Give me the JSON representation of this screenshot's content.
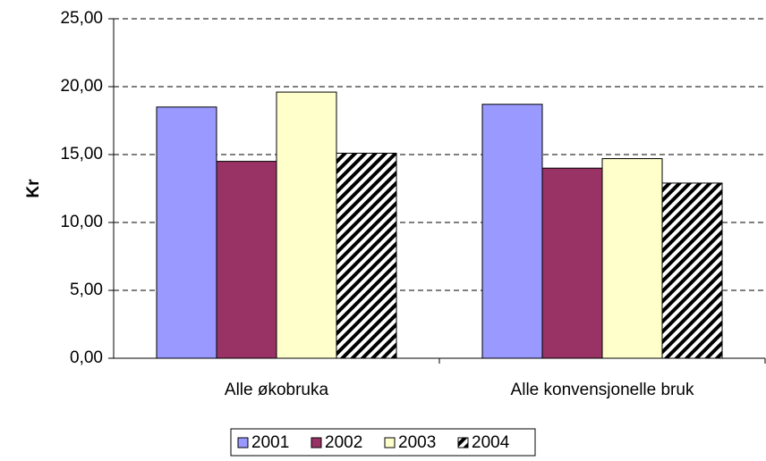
{
  "chart_data": {
    "type": "bar",
    "y_label": "Kr",
    "categories": [
      "Alle økobruka",
      "Alle konvensjonelle bruk"
    ],
    "series": [
      {
        "name": "2001",
        "color": "#9999ff",
        "values": [
          18.5,
          18.7
        ]
      },
      {
        "name": "2002",
        "color": "#993366",
        "values": [
          14.5,
          14.0
        ]
      },
      {
        "name": "2003",
        "color": "#ffffcc",
        "values": [
          19.6,
          14.7
        ]
      },
      {
        "name": "2004",
        "color": "#000000",
        "hatch": true,
        "values": [
          15.1,
          12.9
        ]
      }
    ],
    "ylim": [
      0,
      25
    ],
    "yticks": [
      {
        "value": 0,
        "label": "0,00"
      },
      {
        "value": 5,
        "label": "5,00"
      },
      {
        "value": 10,
        "label": "10,00"
      },
      {
        "value": 15,
        "label": "15,00"
      },
      {
        "value": 20,
        "label": "20,00"
      },
      {
        "value": 25,
        "label": "25,00"
      }
    ],
    "grid": true,
    "legend": "bottom"
  }
}
